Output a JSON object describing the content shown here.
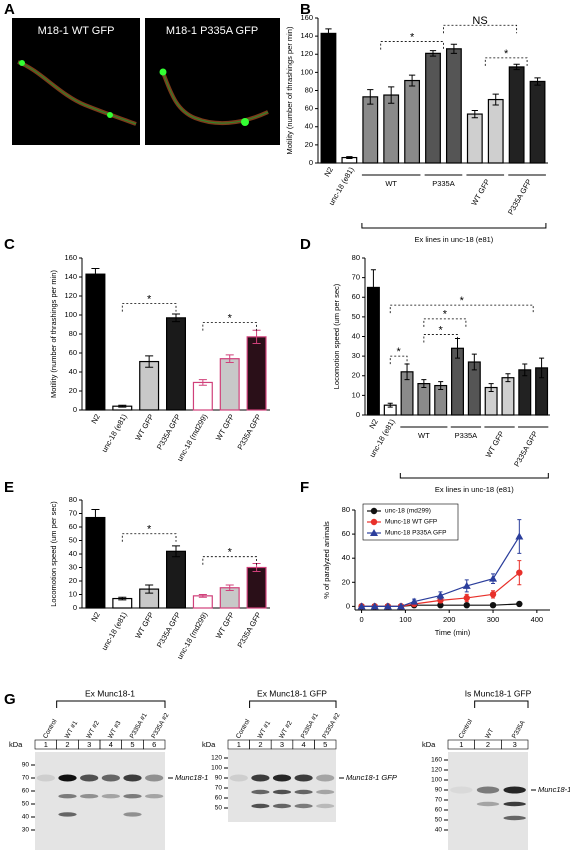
{
  "panel_a": {
    "letter": "A",
    "images": [
      "M18-1 WT GFP",
      "M18-1 P335A GFP"
    ]
  },
  "chart_data": [
    {
      "type": "bar",
      "letter": "B",
      "ylabel": "Motility (number of thrashings per min)",
      "categories": [
        "N2",
        "unc-18 (e81)",
        "WT",
        "WT",
        "WT",
        "P335A",
        "P335A",
        "WT GFP",
        "WT GFP",
        "P335A GFP",
        "P335A GFP"
      ],
      "values": [
        143,
        6,
        73,
        75,
        91,
        121,
        126,
        54,
        70,
        106,
        90
      ],
      "errors": [
        5,
        1,
        8,
        9,
        6,
        3,
        5,
        4,
        6,
        3,
        4
      ],
      "colors": [
        "#000000",
        "#ffffff",
        "#8a8a8a",
        "#8a8a8a",
        "#8a8a8a",
        "#555555",
        "#555555",
        "#cfcfcf",
        "#cfcfcf",
        "#222222",
        "#222222"
      ],
      "edge_colors": [
        "#000000",
        "#000000",
        "#000000",
        "#000000",
        "#000000",
        "#000000",
        "#000000",
        "#000000",
        "#000000",
        "#000000",
        "#000000"
      ],
      "ylim": [
        0,
        160
      ],
      "yticks": [
        0,
        20,
        40,
        60,
        80,
        100,
        120,
        140,
        160
      ],
      "annotations": [
        "*",
        "NS",
        "*"
      ],
      "bracket_label": "Ex lines in unc-18 (e81)"
    },
    {
      "type": "bar",
      "letter": "C",
      "ylabel": "Motility (number of thrashings per min)",
      "categories": [
        "N2",
        "unc-18 (e81)",
        "WT GFP",
        "P335A GFP",
        "unc-18 (md299)",
        "WT GFP",
        "P335A GFP"
      ],
      "values": [
        143,
        4,
        51,
        97,
        29,
        54,
        77
      ],
      "errors": [
        6,
        1,
        6,
        4,
        3,
        4,
        7
      ],
      "colors": [
        "#000000",
        "#ffffff",
        "#c8c8c8",
        "#1a1a1a",
        "#ffffff",
        "#c8c8c8",
        "#2a0f18"
      ],
      "edge_colors": [
        "#000000",
        "#000000",
        "#000000",
        "#000000",
        "#d0407a",
        "#d0407a",
        "#d0407a"
      ],
      "ylim": [
        0,
        160
      ],
      "yticks": [
        0,
        20,
        40,
        60,
        80,
        100,
        120,
        140,
        160
      ],
      "annotations": [
        "*",
        "*"
      ]
    },
    {
      "type": "bar",
      "letter": "D",
      "ylabel": "Locomotion speed (um per sec)",
      "categories": [
        "N2",
        "unc-18 (e81)",
        "WT",
        "WT",
        "WT",
        "P335A",
        "P335A",
        "WT GFP",
        "WT GFP",
        "P335A GFP",
        "P335A GFP"
      ],
      "values": [
        65,
        5,
        22,
        16,
        15,
        34,
        27,
        14,
        19,
        23,
        24
      ],
      "errors": [
        9,
        1,
        4,
        2,
        2,
        5,
        4,
        2,
        2,
        3,
        5
      ],
      "colors": [
        "#000000",
        "#ffffff",
        "#8a8a8a",
        "#8a8a8a",
        "#8a8a8a",
        "#555555",
        "#555555",
        "#cfcfcf",
        "#cfcfcf",
        "#222222",
        "#222222"
      ],
      "edge_colors": [
        "#000000",
        "#000000",
        "#000000",
        "#000000",
        "#000000",
        "#000000",
        "#000000",
        "#000000",
        "#000000",
        "#000000",
        "#000000"
      ],
      "ylim": [
        0,
        80
      ],
      "yticks": [
        0,
        10,
        20,
        30,
        40,
        50,
        60,
        70,
        80
      ],
      "annotations": [
        "*",
        "*",
        "*",
        "*"
      ],
      "bracket_label": "Ex lines in unc-18 (e81)"
    },
    {
      "type": "bar",
      "letter": "E",
      "ylabel": "Locomotion speed (um per sec)",
      "categories": [
        "N2",
        "unc-18 (e81)",
        "WT GFP",
        "P335A GFP",
        "unc-18 (md299)",
        "WT GFP",
        "P335A GFP"
      ],
      "values": [
        67,
        7,
        14,
        42,
        9,
        15,
        30
      ],
      "errors": [
        6,
        1,
        3,
        4,
        1,
        2,
        3
      ],
      "colors": [
        "#000000",
        "#ffffff",
        "#c8c8c8",
        "#1a1a1a",
        "#ffffff",
        "#c8c8c8",
        "#2a0f18"
      ],
      "edge_colors": [
        "#000000",
        "#000000",
        "#000000",
        "#000000",
        "#d0407a",
        "#d0407a",
        "#d0407a"
      ],
      "ylim": [
        0,
        80
      ],
      "yticks": [
        0,
        10,
        20,
        30,
        40,
        50,
        60,
        70,
        80
      ],
      "annotations": [
        "*",
        "*"
      ]
    },
    {
      "type": "line",
      "letter": "F",
      "xlabel": "Time (min)",
      "ylabel": "% of paralyzed animals",
      "x": [
        0,
        30,
        60,
        90,
        120,
        180,
        240,
        300,
        360
      ],
      "series": [
        {
          "name": "unc-18 (md299)",
          "color": "#111111",
          "marker": "circle",
          "values": [
            0,
            0,
            0,
            0,
            1,
            1,
            1,
            1,
            2
          ]
        },
        {
          "name": "Munc-18 WT GFP",
          "color": "#e8302a",
          "marker": "circle",
          "values": [
            0,
            0,
            0,
            0,
            2,
            5,
            7,
            10,
            28
          ],
          "errors": [
            0,
            0,
            0,
            0,
            1,
            2,
            3,
            3,
            10
          ]
        },
        {
          "name": "Munc-18 P335A GFP",
          "color": "#2b3e9c",
          "marker": "triangle",
          "values": [
            0,
            0,
            0,
            0,
            4,
            9,
            17,
            23,
            58
          ],
          "errors": [
            0,
            0,
            0,
            0,
            2,
            3,
            5,
            4,
            14
          ]
        }
      ],
      "xlim": [
        -15,
        430
      ],
      "xticks": [
        0,
        100,
        200,
        300,
        400
      ],
      "ylim": [
        -3,
        80
      ],
      "yticks": [
        0,
        20,
        40,
        60,
        80
      ],
      "legend": "upper left"
    }
  ],
  "panel_g": {
    "letter": "G",
    "kda": "kDa",
    "blots": [
      {
        "title": "Ex Munc18-1",
        "lanes": [
          "Control",
          "WT #1",
          "WT #2",
          "WT #3",
          "P335A #1",
          "P335A #2"
        ],
        "lane_numbers": [
          "1",
          "2",
          "3",
          "4",
          "5",
          "6"
        ],
        "markers": [
          "90",
          "70",
          "60",
          "50",
          "40",
          "30"
        ],
        "band_label": "Munc18-1"
      },
      {
        "title": "Ex Munc18-1 GFP",
        "lanes": [
          "Control",
          "WT #1",
          "WT #2",
          "P335A #1",
          "P335A #2"
        ],
        "lane_numbers": [
          "1",
          "2",
          "3",
          "4",
          "5"
        ],
        "markers": [
          "120",
          "100",
          "90",
          "70",
          "60",
          "50"
        ],
        "band_label": "Munc18-1 GFP"
      },
      {
        "title": "Is Munc18-1 GFP",
        "lanes": [
          "Control",
          "WT",
          "P335A"
        ],
        "lane_numbers": [
          "1",
          "2",
          "3"
        ],
        "markers": [
          "160",
          "120",
          "100",
          "90",
          "70",
          "60",
          "50",
          "40"
        ],
        "band_label": "Munc18-1 GFP"
      }
    ]
  }
}
